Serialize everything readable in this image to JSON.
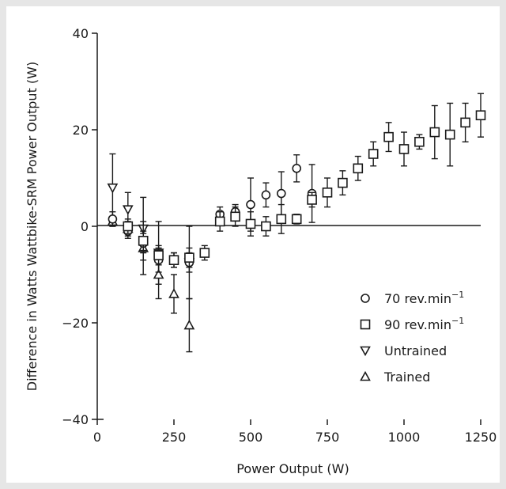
{
  "chart_data": {
    "type": "scatter",
    "xlabel": "Power Output (W)",
    "ylabel": "Difference in Watts Wattbike-SRM Power Output (W)",
    "xlim": [
      0,
      1250
    ],
    "ylim": [
      -40,
      40
    ],
    "xticks": [
      "0",
      "250",
      "500",
      "750",
      "1000",
      "1250"
    ],
    "yticks": [
      "−40",
      "−20",
      "0",
      "20",
      "40"
    ],
    "legend_position": "lower-right",
    "series": [
      {
        "name": "70 rev.min",
        "name_superscript": "−1",
        "marker": "circle",
        "points": [
          {
            "x": 50,
            "y": 1.5,
            "err": 1.5
          },
          {
            "x": 100,
            "y": -1.0,
            "err": 1.5
          },
          {
            "x": 150,
            "y": -3.5,
            "err": 2.0
          },
          {
            "x": 200,
            "y": -7.0,
            "err": 2.5
          },
          {
            "x": 250,
            "y": -7.0,
            "err": 1.5
          },
          {
            "x": 300,
            "y": -7.5,
            "err": 2.0
          },
          {
            "x": 400,
            "y": 2.5,
            "err": 1.5
          },
          {
            "x": 450,
            "y": 3.0,
            "err": 1.5
          },
          {
            "x": 500,
            "y": 4.5,
            "err": 5.5
          },
          {
            "x": 550,
            "y": 6.5,
            "err": 2.5
          },
          {
            "x": 600,
            "y": 6.8,
            "err": 4.5
          },
          {
            "x": 650,
            "y": 12.0,
            "err": 2.8
          },
          {
            "x": 700,
            "y": 6.8,
            "err": 6.0
          }
        ]
      },
      {
        "name": "90 rev.min",
        "name_superscript": "−1",
        "marker": "square",
        "points": [
          {
            "x": 100,
            "y": 0.0,
            "err": 1.5
          },
          {
            "x": 150,
            "y": -3.0,
            "err": 2.0
          },
          {
            "x": 200,
            "y": -6.0,
            "err": 2.0
          },
          {
            "x": 250,
            "y": -7.0,
            "err": 1.5
          },
          {
            "x": 300,
            "y": -6.5,
            "err": 2.0
          },
          {
            "x": 350,
            "y": -5.5,
            "err": 1.5
          },
          {
            "x": 400,
            "y": 1.0,
            "err": 2.0
          },
          {
            "x": 450,
            "y": 2.0,
            "err": 2.0
          },
          {
            "x": 500,
            "y": 0.5,
            "err": 2.5
          },
          {
            "x": 550,
            "y": 0.0,
            "err": 2.0
          },
          {
            "x": 600,
            "y": 1.5,
            "err": 3.0
          },
          {
            "x": 650,
            "y": 1.5,
            "err": 1.0
          },
          {
            "x": 700,
            "y": 5.5,
            "err": 1.5
          },
          {
            "x": 750,
            "y": 7.0,
            "err": 3.0
          },
          {
            "x": 800,
            "y": 9.0,
            "err": 2.5
          },
          {
            "x": 850,
            "y": 12.0,
            "err": 2.5
          },
          {
            "x": 900,
            "y": 15.0,
            "err": 2.5
          },
          {
            "x": 950,
            "y": 18.5,
            "err": 3.0
          },
          {
            "x": 1000,
            "y": 16.0,
            "err": 3.5
          },
          {
            "x": 1050,
            "y": 17.5,
            "err": 1.5
          },
          {
            "x": 1100,
            "y": 19.5,
            "err": 5.5
          },
          {
            "x": 1150,
            "y": 19.0,
            "err": 6.5
          },
          {
            "x": 1200,
            "y": 21.5,
            "err": 4.0
          },
          {
            "x": 1250,
            "y": 23.0,
            "err": 4.5
          }
        ]
      },
      {
        "name": "Untrained",
        "marker": "triangle-down",
        "points": [
          {
            "x": 50,
            "y": 8.0,
            "err": 7.0
          },
          {
            "x": 100,
            "y": 3.5,
            "err": 3.5
          },
          {
            "x": 150,
            "y": -0.5,
            "err": 6.5
          },
          {
            "x": 200,
            "y": -5.5,
            "err": 6.5
          },
          {
            "x": 300,
            "y": -7.5,
            "err": 7.5
          }
        ]
      },
      {
        "name": "Trained",
        "marker": "triangle-up",
        "points": [
          {
            "x": 50,
            "y": 1.0,
            "err": 1.0
          },
          {
            "x": 100,
            "y": -0.5,
            "err": 1.5
          },
          {
            "x": 150,
            "y": -4.5,
            "err": 5.5
          },
          {
            "x": 200,
            "y": -10.0,
            "err": 5.0
          },
          {
            "x": 250,
            "y": -14.0,
            "err": 4.0
          },
          {
            "x": 300,
            "y": -20.5,
            "err": 5.5
          }
        ]
      }
    ]
  }
}
